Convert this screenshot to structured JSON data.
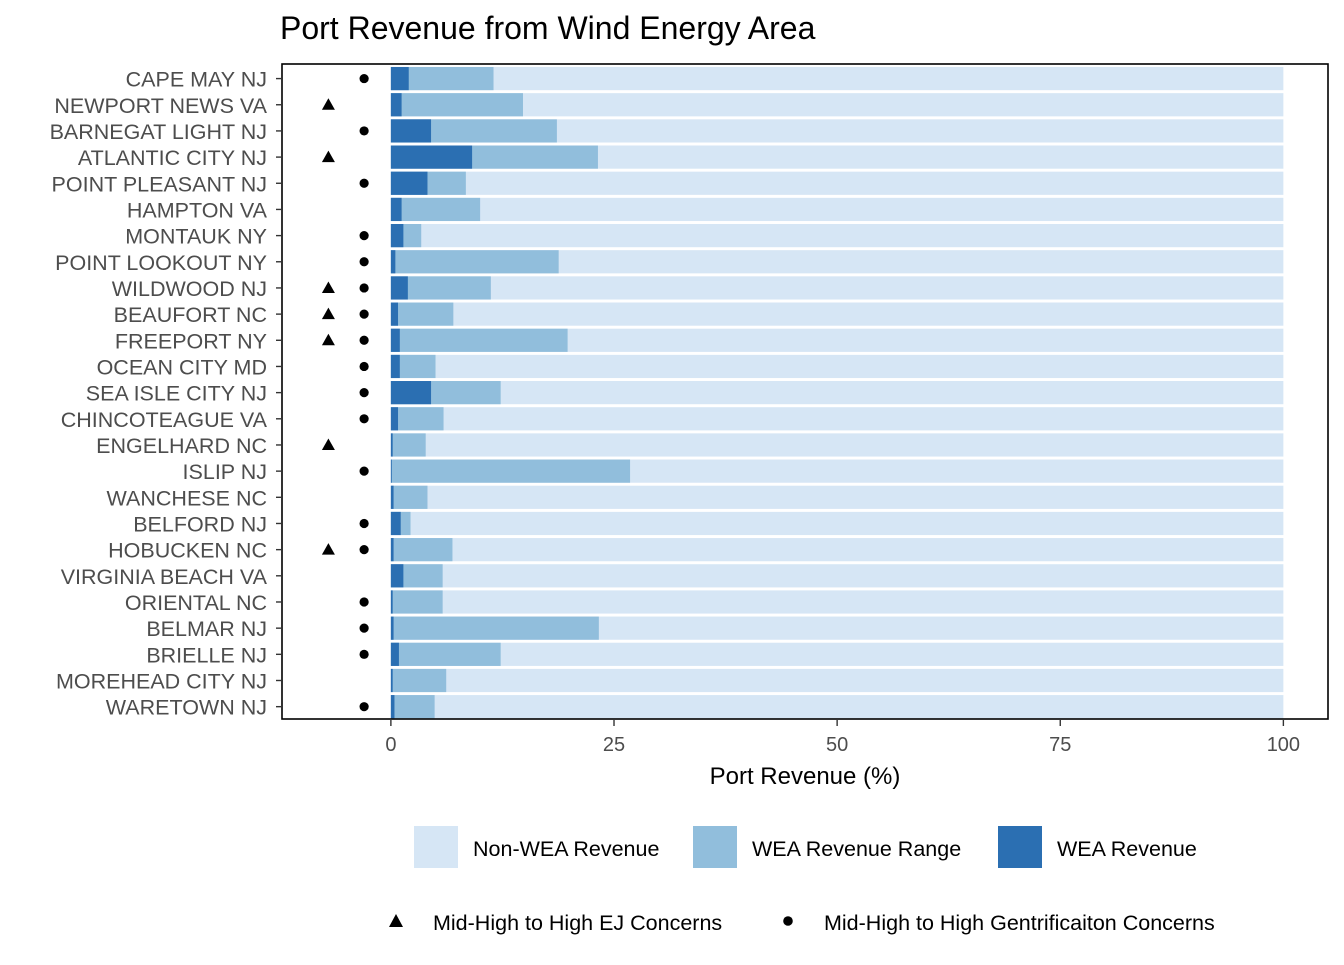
{
  "chart_data": {
    "type": "bar",
    "title": "Port Revenue from Wind Energy Area",
    "xlabel": "Port Revenue (%)",
    "ylabel": "",
    "xlim": [
      -12.2,
      105
    ],
    "x_ticks": [
      0,
      25,
      50,
      75,
      100
    ],
    "grid": false,
    "legend_position": "bottom",
    "categories": [
      "CAPE MAY NJ",
      "NEWPORT NEWS VA",
      "BARNEGAT LIGHT NJ",
      "ATLANTIC CITY NJ",
      "POINT PLEASANT NJ",
      "HAMPTON VA",
      "MONTAUK NY",
      "POINT LOOKOUT NY",
      "WILDWOOD NJ",
      "BEAUFORT NC",
      "FREEPORT NY",
      "OCEAN CITY MD",
      "SEA ISLE CITY NJ",
      "CHINCOTEAGUE VA",
      "ENGELHARD NC",
      "ISLIP NJ",
      "WANCHESE NC",
      "BELFORD NJ",
      "HOBUCKEN NC",
      "VIRGINIA BEACH VA",
      "ORIENTAL NC",
      "BELMAR NJ",
      "BRIELLE NJ",
      "MOREHEAD CITY NJ",
      "WARETOWN NJ"
    ],
    "series": [
      {
        "name": "Non-WEA Revenue",
        "color": "#d6e6f5",
        "values": [
          100,
          100,
          100,
          100,
          100,
          100,
          100,
          100,
          100,
          100,
          100,
          100,
          100,
          100,
          100,
          100,
          100,
          100,
          100,
          100,
          100,
          100,
          100,
          100,
          100
        ]
      },
      {
        "name": "WEA Revenue Range",
        "color": "#91bedc",
        "values": [
          11.5,
          14.8,
          18.6,
          23.2,
          8.4,
          10,
          3.4,
          18.8,
          11.2,
          7,
          19.8,
          5,
          12.3,
          5.9,
          3.9,
          26.8,
          4.1,
          2.2,
          6.9,
          5.8,
          5.8,
          23.3,
          12.3,
          6.2,
          4.9
        ]
      },
      {
        "name": "WEA Revenue",
        "color": "#2b6fb2",
        "values": [
          2,
          1.2,
          4.5,
          9.1,
          4.1,
          1.2,
          1.4,
          0.5,
          1.9,
          0.8,
          1,
          1,
          4.5,
          0.8,
          0.2,
          0.1,
          0.3,
          1.1,
          0.3,
          1.4,
          0.2,
          0.3,
          0.9,
          0.2,
          0.4
        ]
      }
    ],
    "ej_concerns": [
      false,
      true,
      false,
      true,
      false,
      false,
      false,
      false,
      true,
      true,
      true,
      false,
      false,
      false,
      true,
      false,
      false,
      false,
      true,
      false,
      false,
      false,
      false,
      false,
      false
    ],
    "gentrification_concerns": [
      true,
      false,
      true,
      false,
      true,
      false,
      true,
      true,
      true,
      true,
      true,
      true,
      true,
      true,
      false,
      true,
      false,
      true,
      true,
      false,
      true,
      true,
      true,
      false,
      true
    ],
    "marker_legend": [
      {
        "name": "Mid-High to High EJ Concerns",
        "shape": "triangle"
      },
      {
        "name": "Mid-High to High Gentrificaiton Concerns",
        "shape": "circle"
      }
    ]
  }
}
